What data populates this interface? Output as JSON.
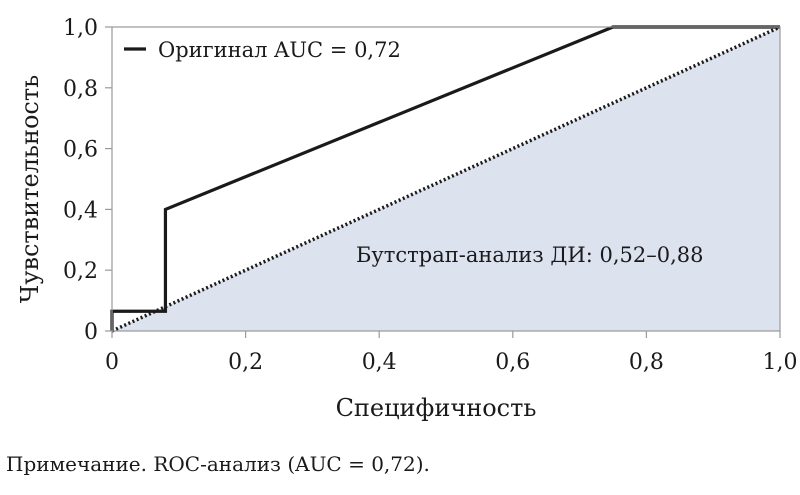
{
  "chart_data": {
    "type": "line",
    "title": "",
    "xlabel": "Специфичность",
    "ylabel": "Чувствительность",
    "xlim": [
      0,
      1
    ],
    "ylim": [
      0,
      1
    ],
    "xticks": [
      "0",
      "0,2",
      "0,4",
      "0,6",
      "0,8",
      "1,0"
    ],
    "yticks": [
      "0",
      "0,2",
      "0,4",
      "0,6",
      "0,8",
      "1,0"
    ],
    "grid": false,
    "legend_position": "top-left",
    "series": [
      {
        "name": "Оригинал AUC = 0,72",
        "color": "#1a1a1a",
        "x": [
          0,
          0,
          0.08,
          0.08,
          0.75,
          1.0
        ],
        "y": [
          0,
          0.065,
          0.065,
          0.4,
          1.0,
          1.0
        ]
      }
    ],
    "reference_line": {
      "x": [
        0,
        1
      ],
      "y": [
        0,
        1
      ],
      "style": "dotted",
      "color": "#1a1a1a"
    },
    "shaded_region": {
      "vertices_x": [
        0,
        1,
        1
      ],
      "vertices_y": [
        0,
        1,
        0
      ],
      "color": "#dde2ef"
    },
    "annotation": "Бутстрап-анализ ДИ: 0,52–0,88"
  },
  "note": "Примечание. ROC-анализ (AUC = 0,72)."
}
